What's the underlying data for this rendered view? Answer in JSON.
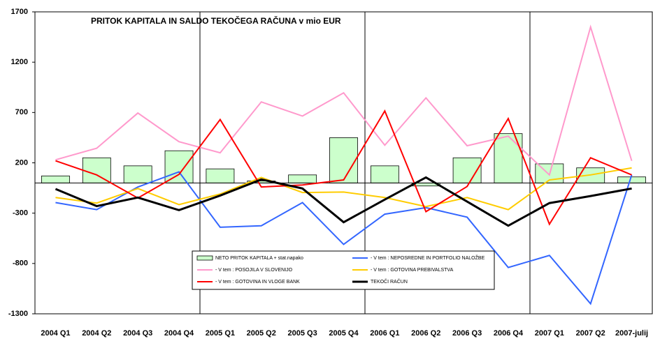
{
  "chart_data": {
    "type": "line",
    "title": "PRITOK KAPITALA IN SALDO TEKOČEGA RAČUNA v mio EUR",
    "categories": [
      "2004 Q1",
      "2004 Q2",
      "2004 Q3",
      "2004 Q4",
      "2005 Q1",
      "2005 Q2",
      "2005 Q3",
      "2005 Q4",
      "2006 Q1",
      "2006 Q2",
      "2006 Q3",
      "2006 Q4",
      "2007 Q1",
      "2007 Q2",
      "2007-julij"
    ],
    "ylim": [
      -1300,
      1700
    ],
    "yticks": [
      -1300,
      -800,
      -300,
      200,
      700,
      1200,
      1700
    ],
    "series": [
      {
        "name": "NETO PRITOK KAPITALA + stat.napako",
        "type": "bar",
        "color": "#ccffcc",
        "values": [
          70,
          250,
          170,
          320,
          140,
          20,
          80,
          450,
          170,
          -30,
          250,
          490,
          190,
          150,
          60
        ]
      },
      {
        "name": "- V tem : NEPOSREDNE IN PORTFOLIO NALOŽBE",
        "type": "line",
        "color": "#3366ff",
        "values": [
          -195,
          -265,
          -40,
          110,
          -440,
          -425,
          -195,
          -610,
          -310,
          -245,
          -340,
          -840,
          -720,
          -1200,
          80
        ]
      },
      {
        "name": "- V tem : POSOJILA V SLOVENIJO",
        "type": "line",
        "color": "#ff99cc",
        "values": [
          230,
          345,
          695,
          410,
          300,
          805,
          665,
          895,
          375,
          845,
          370,
          465,
          80,
          1550,
          220
        ]
      },
      {
        "name": "- V tem : GOTOVINA PREBIVALSTVA",
        "type": "line",
        "color": "#ffcc00",
        "values": [
          -145,
          -200,
          -55,
          -215,
          -110,
          55,
          -95,
          -90,
          -145,
          -235,
          -145,
          -265,
          30,
          80,
          150
        ]
      },
      {
        "name": "- V tem : GOTOVINA IN VLOGE BANK",
        "type": "line",
        "color": "#ff0000",
        "values": [
          220,
          80,
          -150,
          85,
          630,
          -40,
          -20,
          30,
          715,
          -285,
          -35,
          640,
          -410,
          250,
          80
        ]
      },
      {
        "name": "TEKOČI RAČUN",
        "type": "line",
        "color": "#000000",
        "values": [
          -60,
          -230,
          -145,
          -270,
          -125,
          35,
          -55,
          -390,
          -165,
          55,
          -185,
          -425,
          -200,
          -130,
          -55
        ]
      }
    ]
  }
}
